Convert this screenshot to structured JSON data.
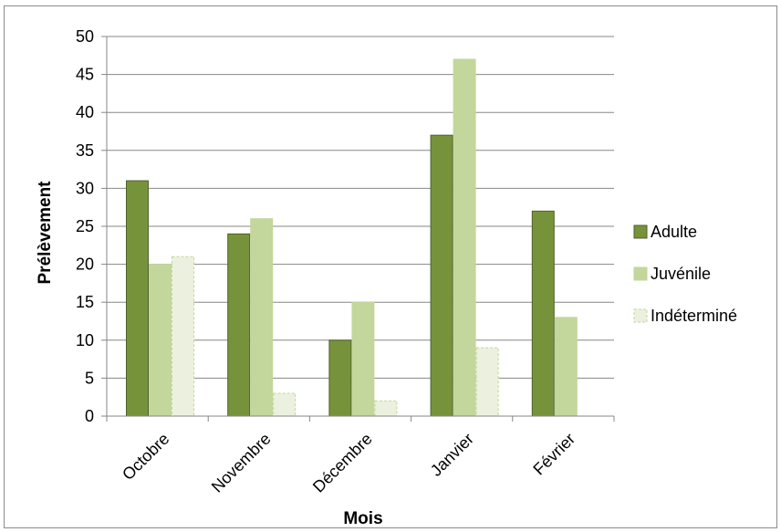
{
  "chart_data": {
    "type": "bar",
    "categories": [
      "Octobre",
      "Novembre",
      "Décembre",
      "Janvier",
      "Février"
    ],
    "series": [
      {
        "name": "Adulte",
        "values": [
          31,
          24,
          10,
          37,
          27
        ],
        "color": "#76933c",
        "border": "#4f6228"
      },
      {
        "name": "Juvénile",
        "values": [
          20,
          26,
          15,
          47,
          13
        ],
        "color": "#c3d69b",
        "border": "#c3d69b"
      },
      {
        "name": "Indéterminé",
        "values": [
          21,
          3,
          2,
          9,
          0
        ],
        "color": "#ebf1de",
        "border": "#c3d69b"
      }
    ],
    "yticks": [
      "0",
      "5",
      "10",
      "15",
      "20",
      "25",
      "30",
      "35",
      "40",
      "45",
      "50"
    ],
    "ylim": [
      0,
      50
    ],
    "xlabel": "Mois",
    "ylabel": "Prélèvement",
    "grid": true,
    "legend_position": "right"
  }
}
